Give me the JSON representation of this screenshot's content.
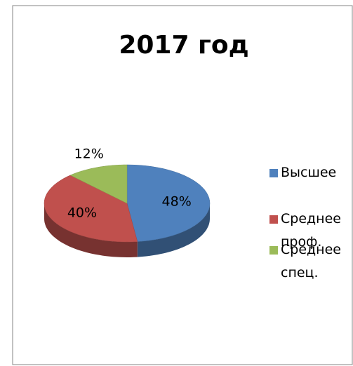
{
  "chart_data": {
    "type": "pie3d",
    "title": "2017 год",
    "categories": [
      "Высшее",
      "Среднее проф.",
      "Среднее спец."
    ],
    "values": [
      48,
      40,
      12
    ],
    "value_labels": [
      "48%",
      "40%",
      "12%"
    ],
    "colors": [
      "#4f81bd",
      "#c0504d",
      "#9bbb59"
    ],
    "legend": "right"
  }
}
